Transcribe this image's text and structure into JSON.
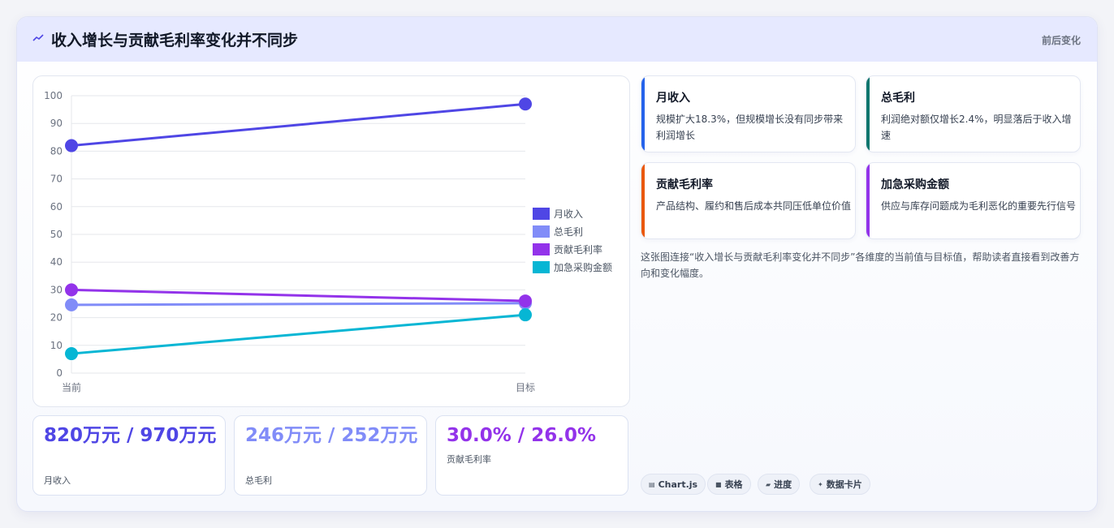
{
  "header": {
    "title": "收入增长与贡献毛利率变化并不同步",
    "right_label": "前后变化"
  },
  "chart_data": {
    "type": "line",
    "categories": [
      "当前",
      "目标"
    ],
    "series": [
      {
        "name": "月收入",
        "values": [
          82,
          97
        ],
        "color": "#4f46e5"
      },
      {
        "name": "总毛利",
        "values": [
          24.6,
          25.2
        ],
        "color": "#818cf8"
      },
      {
        "name": "贡献毛利率",
        "values": [
          30,
          26
        ],
        "color": "#9333ea"
      },
      {
        "name": "加急采购金额",
        "values": [
          7,
          21
        ],
        "color": "#06b6d4"
      }
    ],
    "ylim": [
      0,
      100
    ],
    "yticks": [
      0,
      10,
      20,
      30,
      40,
      50,
      60,
      70,
      80,
      90,
      100
    ],
    "legend": "right",
    "grid": true
  },
  "kpis": [
    {
      "value": "820万元 / 970万元",
      "label": "月收入",
      "color": "#4f46e5"
    },
    {
      "value": "246万元 / 252万元",
      "label": "总毛利",
      "color": "#818cf8"
    },
    {
      "value": "30.0% / 26.0%",
      "label": "贡献毛利率",
      "color": "#9333ea"
    }
  ],
  "cards": [
    {
      "title": "月收入",
      "desc": "规模扩大18.3%，但规模增长没有同步带来利润增长",
      "color": "#2563eb"
    },
    {
      "title": "总毛利",
      "desc": "利润绝对额仅增长2.4%，明显落后于收入增速",
      "color": "#0f766e"
    },
    {
      "title": "贡献毛利率",
      "desc": "产品结构、履约和售后成本共同压低单位价值",
      "color": "#ea580c"
    },
    {
      "title": "加急采购金额",
      "desc": "供应与库存问题成为毛利恶化的重要先行信号",
      "color": "#9333ea"
    }
  ],
  "description": "这张图连接“收入增长与贡献毛利率变化并不同步”各维度的当前值与目标值，帮助读者直接看到改善方向和变化幅度。",
  "chips": [
    {
      "icon": "chart-icon",
      "label": "Chart.js"
    },
    {
      "icon": "table-icon",
      "label": "表格"
    },
    {
      "icon": "progress-icon",
      "label": "进度"
    },
    {
      "icon": "sparkle-icon",
      "label": "数据卡片"
    }
  ]
}
